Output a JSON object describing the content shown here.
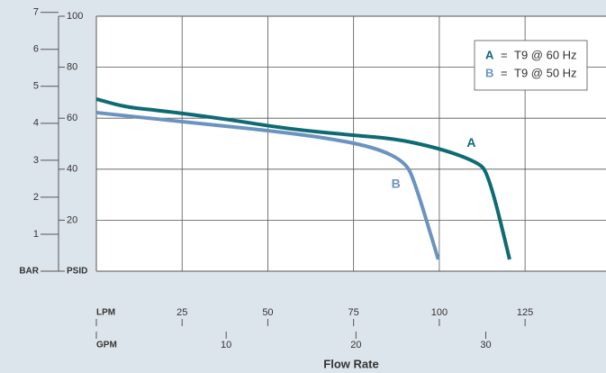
{
  "chart_data": {
    "type": "line",
    "x_label": "Flow Rate",
    "xlim": [
      0,
      148.6
    ],
    "xticks": [
      {
        "value": 0,
        "label": "LPM"
      },
      25,
      50,
      75,
      100,
      125
    ],
    "x2lim": [
      0,
      39.26
    ],
    "x2ticks": [
      {
        "value": 0,
        "label": "GPM"
      },
      10,
      20,
      30
    ],
    "ylim": [
      0,
      100
    ],
    "yticks": [
      {
        "value": 0,
        "label": "PSID"
      },
      20,
      40,
      60,
      80,
      100
    ],
    "y2lim": [
      0,
      6.895
    ],
    "y2ticks": [
      {
        "value": 0,
        "label": "BAR"
      },
      1,
      2,
      3,
      4,
      5,
      6,
      7
    ],
    "grid": true,
    "legend": "upper right",
    "legend_separator": "=",
    "series": [
      {
        "label": "A",
        "name": "T9 @ 60 Hz",
        "color": "#0e6a73",
        "x": [
          0,
          8.7,
          19.2,
          37.5,
          55.9,
          74.3,
          87.4,
          97.9,
          105.8,
          111.8,
          113.6,
          116.3,
          120.5
        ],
        "values": [
          67.5,
          64.3,
          62.9,
          59.7,
          55.8,
          53.4,
          51.9,
          48.8,
          45.6,
          42,
          39.2,
          27.9,
          4.6
        ],
        "label_at": [
          108,
          50
        ]
      },
      {
        "label": "B",
        "name": "T9 @ 50 Hz",
        "color": "#6b93bf",
        "x": [
          0,
          24.4,
          50.7,
          69,
          82.2,
          90,
          92.7,
          99.7
        ],
        "values": [
          62.2,
          58.7,
          55.1,
          51.9,
          48.1,
          42.8,
          35.7,
          4.6
        ],
        "label_at": [
          86,
          34
        ]
      }
    ]
  }
}
